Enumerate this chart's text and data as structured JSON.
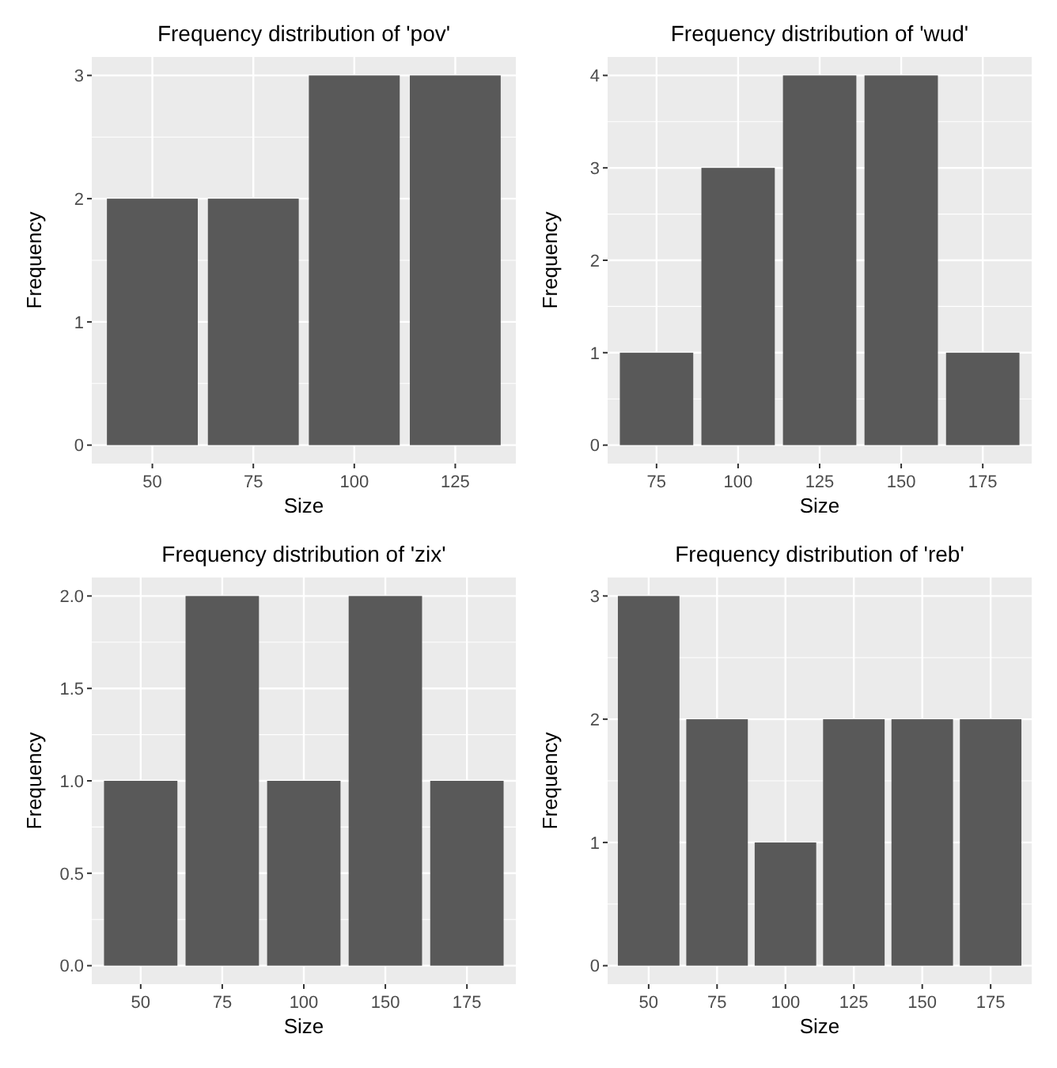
{
  "chart_data": [
    {
      "type": "bar",
      "title": "Frequency distribution of 'pov'",
      "xlabel": "Size",
      "ylabel": "Frequency",
      "categories": [
        "50",
        "75",
        "100",
        "125"
      ],
      "values": [
        2,
        2,
        3,
        3
      ],
      "color": "#595959",
      "ylim": [
        -0.15,
        3.15
      ],
      "yticks": [
        0,
        1,
        2,
        3
      ],
      "grid": true
    },
    {
      "type": "bar",
      "title": "Frequency distribution of 'wud'",
      "xlabel": "Size",
      "ylabel": "Frequency",
      "categories": [
        "75",
        "100",
        "125",
        "150",
        "175"
      ],
      "values": [
        1,
        3,
        4,
        4,
        1
      ],
      "color": "#595959",
      "ylim": [
        -0.2,
        4.2
      ],
      "yticks": [
        0,
        1,
        2,
        3,
        4
      ],
      "grid": true
    },
    {
      "type": "bar",
      "title": "Frequency distribution of 'zix'",
      "xlabel": "Size",
      "ylabel": "Frequency",
      "categories": [
        "50",
        "75",
        "100",
        "150",
        "175"
      ],
      "values": [
        1,
        2,
        1,
        2,
        1
      ],
      "color": "#595959",
      "ylim": [
        -0.1,
        2.1
      ],
      "yticks": [
        {
          "value": 0,
          "label": "0.0"
        },
        {
          "value": 0.5,
          "label": "0.5"
        },
        {
          "value": 1,
          "label": "1.0"
        },
        {
          "value": 1.5,
          "label": "1.5"
        },
        {
          "value": 2,
          "label": "2.0"
        }
      ],
      "grid": true
    },
    {
      "type": "bar",
      "title": "Frequency distribution of 'reb'",
      "xlabel": "Size",
      "ylabel": "Frequency",
      "categories": [
        "50",
        "75",
        "100",
        "125",
        "150",
        "175"
      ],
      "values": [
        3,
        2,
        1,
        2,
        2,
        2
      ],
      "color": "#595959",
      "ylim": [
        -0.15,
        3.15
      ],
      "yticks": [
        0,
        1,
        2,
        3
      ],
      "grid": true
    }
  ]
}
